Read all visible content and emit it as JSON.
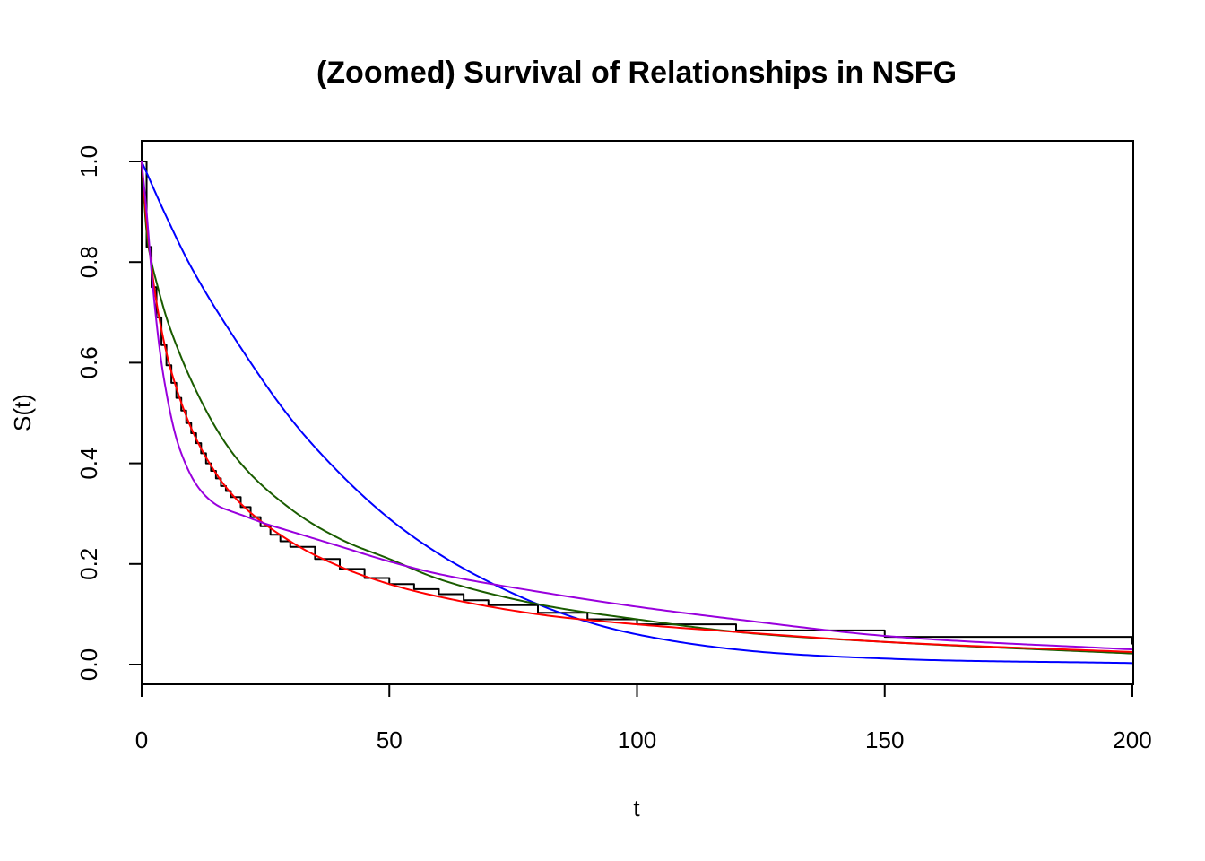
{
  "chart_data": {
    "type": "line",
    "title": "(Zoomed) Survival of Relationships in NSFG",
    "xlabel": "t",
    "ylabel": "S(t)",
    "xlim": [
      0,
      200
    ],
    "ylim": [
      0,
      1
    ],
    "x_ticks": [
      "0",
      "50",
      "100",
      "150",
      "200"
    ],
    "y_ticks": [
      "0.0",
      "0.2",
      "0.4",
      "0.6",
      "0.8",
      "1.0"
    ],
    "grid": false,
    "legend": "none",
    "series": [
      {
        "color": "#000000",
        "step": true,
        "x": [
          0,
          1,
          2,
          3,
          4,
          5,
          6,
          7,
          8,
          9,
          10,
          11,
          12,
          13,
          14,
          15,
          16,
          17,
          18,
          20,
          22,
          24,
          26,
          28,
          30,
          35,
          40,
          45,
          50,
          55,
          60,
          65,
          70,
          80,
          90,
          100,
          120,
          150,
          200
        ],
        "y": [
          1.0,
          0.83,
          0.75,
          0.69,
          0.635,
          0.595,
          0.56,
          0.53,
          0.505,
          0.48,
          0.46,
          0.44,
          0.42,
          0.4,
          0.385,
          0.37,
          0.355,
          0.345,
          0.333,
          0.313,
          0.293,
          0.275,
          0.258,
          0.245,
          0.234,
          0.21,
          0.19,
          0.172,
          0.16,
          0.15,
          0.14,
          0.128,
          0.118,
          0.103,
          0.09,
          0.08,
          0.068,
          0.055,
          0.04
        ]
      },
      {
        "color": "#0000ff",
        "x": [
          0,
          5,
          10,
          20,
          30,
          40,
          50,
          60,
          70,
          80,
          90,
          100,
          120,
          150,
          200
        ],
        "y": [
          1.0,
          0.89,
          0.79,
          0.63,
          0.49,
          0.38,
          0.29,
          0.22,
          0.165,
          0.12,
          0.085,
          0.06,
          0.03,
          0.012,
          0.003
        ]
      },
      {
        "color": "#1a5c00",
        "x": [
          0,
          1,
          2,
          3,
          5,
          7,
          10,
          15,
          20,
          30,
          40,
          50,
          60,
          80,
          100,
          120,
          150,
          200
        ],
        "y": [
          1.0,
          0.86,
          0.8,
          0.76,
          0.69,
          0.635,
          0.565,
          0.47,
          0.4,
          0.31,
          0.25,
          0.21,
          0.17,
          0.12,
          0.09,
          0.065,
          0.045,
          0.022
        ]
      },
      {
        "color": "#ff0000",
        "x": [
          0,
          1,
          2,
          3,
          5,
          7,
          10,
          15,
          20,
          30,
          40,
          50,
          60,
          80,
          100,
          120,
          150,
          200
        ],
        "y": [
          1.0,
          0.88,
          0.79,
          0.72,
          0.62,
          0.55,
          0.47,
          0.38,
          0.32,
          0.245,
          0.195,
          0.16,
          0.135,
          0.1,
          0.08,
          0.065,
          0.045,
          0.025
        ]
      },
      {
        "color": "#9900dd",
        "x": [
          0,
          1,
          2,
          3,
          4,
          5,
          6,
          7,
          8,
          10,
          12,
          15,
          18,
          20,
          25,
          30,
          40,
          50,
          60,
          80,
          100,
          120,
          150,
          200
        ],
        "y": [
          1.0,
          0.9,
          0.78,
          0.68,
          0.6,
          0.54,
          0.49,
          0.45,
          0.42,
          0.375,
          0.345,
          0.318,
          0.305,
          0.298,
          0.28,
          0.265,
          0.235,
          0.205,
          0.18,
          0.145,
          0.115,
          0.09,
          0.057,
          0.03
        ]
      }
    ]
  }
}
